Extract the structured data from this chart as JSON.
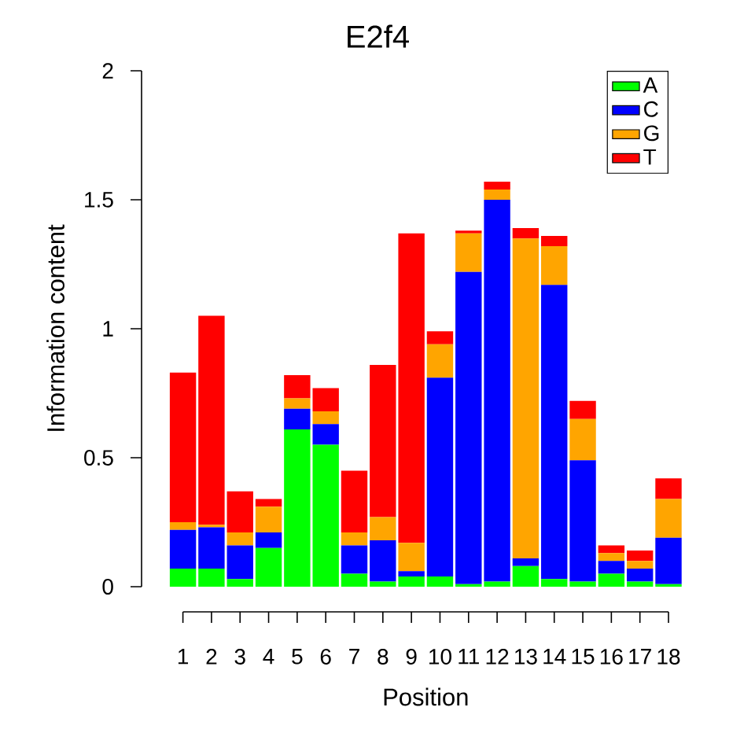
{
  "chart_data": {
    "type": "bar",
    "title": "E2f4",
    "xlabel": "Position",
    "ylabel": "Information content",
    "categories": [
      "1",
      "2",
      "3",
      "4",
      "5",
      "6",
      "7",
      "8",
      "9",
      "10",
      "11",
      "12",
      "13",
      "14",
      "15",
      "16",
      "17",
      "18"
    ],
    "stacked": true,
    "series": [
      {
        "name": "A",
        "color": "#00ff00",
        "values": [
          0.07,
          0.07,
          0.03,
          0.15,
          0.61,
          0.55,
          0.05,
          0.02,
          0.04,
          0.04,
          0.01,
          0.02,
          0.08,
          0.03,
          0.02,
          0.05,
          0.02,
          0.01
        ]
      },
      {
        "name": "C",
        "color": "#0000ff",
        "values": [
          0.15,
          0.16,
          0.13,
          0.06,
          0.08,
          0.08,
          0.11,
          0.16,
          0.02,
          0.77,
          1.21,
          1.48,
          0.03,
          1.14,
          0.47,
          0.05,
          0.05,
          0.18
        ]
      },
      {
        "name": "G",
        "color": "#ffa500",
        "values": [
          0.03,
          0.01,
          0.05,
          0.1,
          0.04,
          0.05,
          0.05,
          0.09,
          0.11,
          0.13,
          0.15,
          0.04,
          1.24,
          0.15,
          0.16,
          0.03,
          0.03,
          0.15
        ]
      },
      {
        "name": "T",
        "color": "#ff0000",
        "values": [
          0.58,
          0.81,
          0.16,
          0.03,
          0.09,
          0.09,
          0.24,
          0.59,
          1.2,
          0.05,
          0.01,
          0.03,
          0.04,
          0.04,
          0.07,
          0.03,
          0.04,
          0.08
        ]
      }
    ],
    "ylim": [
      0,
      2
    ],
    "yticks": [
      0,
      0.5,
      1,
      1.5,
      2
    ],
    "legend": "top right"
  }
}
